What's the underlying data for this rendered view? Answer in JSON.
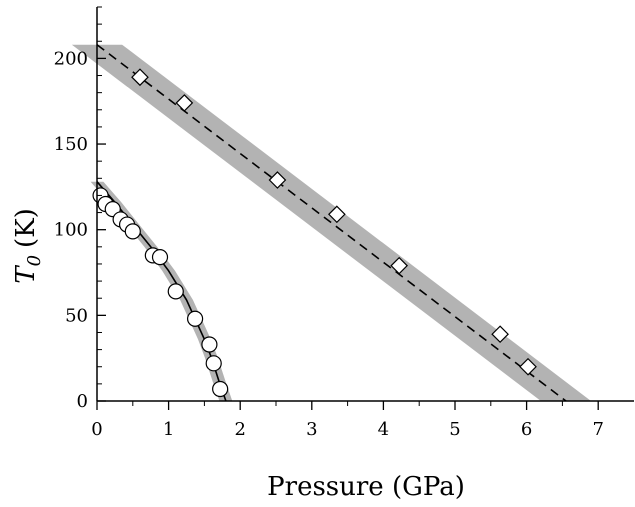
{
  "chart_data": {
    "type": "scatter",
    "xlabel": "Pressure (GPa)",
    "ylabel": {
      "symbol": "T",
      "subscript": "0",
      "unit": "(K)"
    },
    "xlim": [
      0,
      7.5
    ],
    "ylim": [
      0,
      230
    ],
    "x_ticks": [
      0,
      1,
      2,
      3,
      4,
      5,
      6,
      7
    ],
    "y_ticks": [
      0,
      50,
      100,
      150,
      200
    ],
    "grid": false,
    "series": [
      {
        "marker": "circle",
        "points": [
          {
            "x": 0.05,
            "y": 120
          },
          {
            "x": 0.12,
            "y": 115
          },
          {
            "x": 0.22,
            "y": 112
          },
          {
            "x": 0.33,
            "y": 106
          },
          {
            "x": 0.42,
            "y": 103
          },
          {
            "x": 0.5,
            "y": 99
          },
          {
            "x": 0.78,
            "y": 85
          },
          {
            "x": 0.88,
            "y": 84
          },
          {
            "x": 1.1,
            "y": 64
          },
          {
            "x": 1.37,
            "y": 48
          },
          {
            "x": 1.57,
            "y": 33
          },
          {
            "x": 1.63,
            "y": 22
          },
          {
            "x": 1.72,
            "y": 7
          }
        ],
        "fit": {
          "style": "solid",
          "x": [
            0,
            0.25,
            0.5,
            0.75,
            1.0,
            1.25,
            1.5,
            1.6,
            1.7,
            1.8
          ],
          "y": [
            128,
            116,
            103,
            90,
            76,
            59,
            36,
            25,
            12,
            0
          ],
          "band_halfwidth_gpa": 0.09
        }
      },
      {
        "marker": "diamond",
        "points": [
          {
            "x": 0.6,
            "y": 189
          },
          {
            "x": 1.22,
            "y": 174
          },
          {
            "x": 2.52,
            "y": 129
          },
          {
            "x": 3.35,
            "y": 109
          },
          {
            "x": 4.22,
            "y": 79
          },
          {
            "x": 5.63,
            "y": 39
          },
          {
            "x": 6.02,
            "y": 20
          }
        ],
        "fit": {
          "style": "dashed",
          "x": [
            0,
            6.55
          ],
          "y": [
            208,
            0
          ],
          "band_halfwidth_gpa": 0.35
        }
      }
    ]
  }
}
